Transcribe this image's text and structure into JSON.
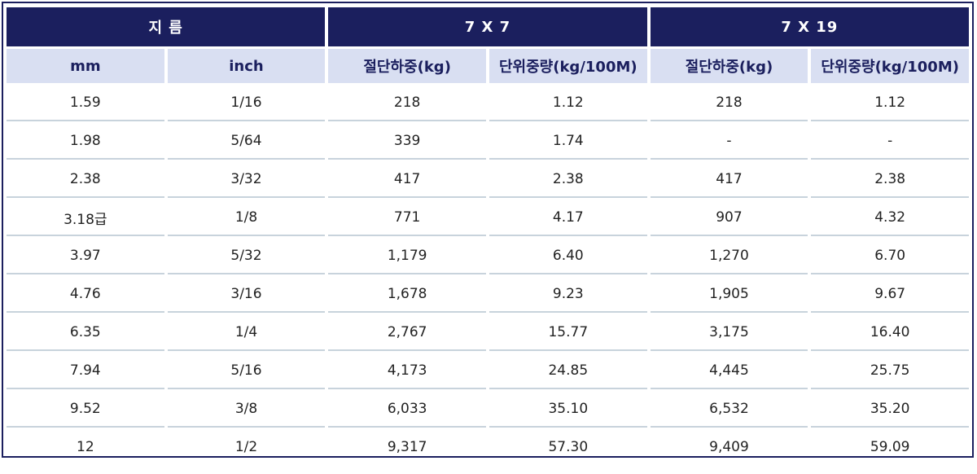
{
  "header": {
    "diameter": "지 름",
    "group_7x7": "7 X 7",
    "group_7x19": "7 X 19"
  },
  "subheader": {
    "mm": "mm",
    "inch": "inch",
    "break_load_7x7": "절단하중(kg)",
    "unit_weight_7x7": "단위중량(kg/100M)",
    "break_load_7x19": "절단하중(kg)",
    "unit_weight_7x19": "단위중량(kg/100M)"
  },
  "rows": [
    [
      "1.59",
      "1/16",
      "218",
      "1.12",
      "218",
      "1.12"
    ],
    [
      "1.98",
      "5/64",
      "339",
      "1.74",
      "-",
      "-"
    ],
    [
      "2.38",
      "3/32",
      "417",
      "2.38",
      "417",
      "2.38"
    ],
    [
      "3.18급",
      "1/8",
      "771",
      "4.17",
      "907",
      "4.32"
    ],
    [
      "3.97",
      "5/32",
      "1,179",
      "6.40",
      "1,270",
      "6.70"
    ],
    [
      "4.76",
      "3/16",
      "1,678",
      "9.23",
      "1,905",
      "9.67"
    ],
    [
      "6.35",
      "1/4",
      "2,767",
      "15.77",
      "3,175",
      "16.40"
    ],
    [
      "7.94",
      "5/16",
      "4,173",
      "24.85",
      "4,445",
      "25.75"
    ],
    [
      "9.52",
      "3/8",
      "6,033",
      "35.10",
      "6,532",
      "35.20"
    ],
    [
      "12",
      "1/2",
      "9,317",
      "57.30",
      "9,409",
      "59.09"
    ]
  ],
  "colors": {
    "header_bg": "#1b1f5e",
    "subheader_bg": "#d9dff2",
    "row_divider": "#c8d3dc"
  }
}
